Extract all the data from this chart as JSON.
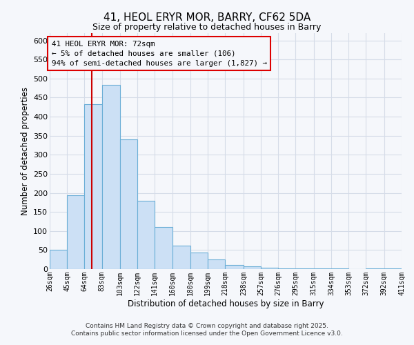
{
  "title": "41, HEOL ERYR MOR, BARRY, CF62 5DA",
  "subtitle": "Size of property relative to detached houses in Barry",
  "xlabel": "Distribution of detached houses by size in Barry",
  "ylabel": "Number of detached properties",
  "bar_left_edges": [
    26,
    45,
    64,
    83,
    103,
    122,
    141,
    160,
    180,
    199,
    218,
    238,
    257,
    276,
    295,
    315,
    334,
    353,
    372,
    392
  ],
  "bar_heights": [
    50,
    193,
    432,
    484,
    340,
    179,
    110,
    61,
    44,
    25,
    10,
    8,
    3,
    2,
    1,
    1,
    1,
    0,
    1,
    2
  ],
  "bin_widths": [
    19,
    19,
    19,
    20,
    19,
    19,
    19,
    20,
    19,
    19,
    20,
    19,
    19,
    19,
    20,
    19,
    19,
    19,
    20,
    19
  ],
  "xlim_left": 26,
  "xlim_right": 411,
  "ylim_top": 620,
  "ylim_bottom": 0,
  "yticks": [
    0,
    50,
    100,
    150,
    200,
    250,
    300,
    350,
    400,
    450,
    500,
    550,
    600
  ],
  "xtick_labels": [
    "26sqm",
    "45sqm",
    "64sqm",
    "83sqm",
    "103sqm",
    "122sqm",
    "141sqm",
    "160sqm",
    "180sqm",
    "199sqm",
    "218sqm",
    "238sqm",
    "257sqm",
    "276sqm",
    "295sqm",
    "315sqm",
    "334sqm",
    "353sqm",
    "372sqm",
    "392sqm",
    "411sqm"
  ],
  "xtick_positions": [
    26,
    45,
    64,
    83,
    103,
    122,
    141,
    160,
    180,
    199,
    218,
    238,
    257,
    276,
    295,
    315,
    334,
    353,
    372,
    392,
    411
  ],
  "property_line_x": 72,
  "bar_facecolor": "#cce0f5",
  "bar_edgecolor": "#6aaed6",
  "annotation_line0": "41 HEOL ERYR MOR: 72sqm",
  "annotation_line1": "← 5% of detached houses are smaller (106)",
  "annotation_line2": "94% of semi-detached houses are larger (1,827) →",
  "annotation_box_color": "#dd0000",
  "property_line_color": "#cc0000",
  "grid_color": "#d5dce8",
  "background_color": "#f5f7fb",
  "footer1": "Contains HM Land Registry data © Crown copyright and database right 2025.",
  "footer2": "Contains public sector information licensed under the Open Government Licence v3.0."
}
